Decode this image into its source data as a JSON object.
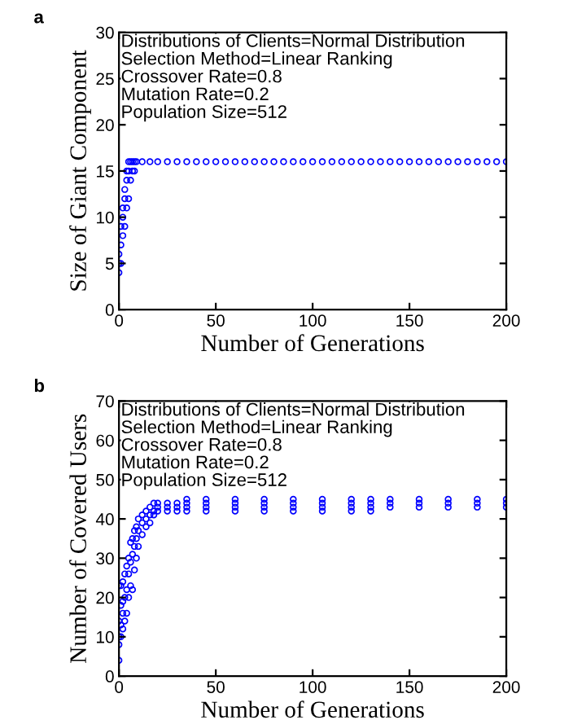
{
  "chart_data": [
    {
      "type": "scatter",
      "xlabel": "Number of Generations",
      "ylabel": "Size of Giant Component",
      "xlim": [
        0,
        200
      ],
      "ylim": [
        0,
        30
      ],
      "xticks": [
        0,
        50,
        100,
        150,
        200
      ],
      "yticks": [
        0,
        5,
        10,
        15,
        20,
        25,
        30
      ],
      "marker": "circle",
      "grid": false,
      "annotations": [
        "a",
        "Distributions of Clients=Normal Distribution",
        "Selection Method=Linear Ranking",
        "Crossover Rate=0.8",
        "Mutation Rate=0.2",
        "Population Size=512"
      ],
      "series": [
        {
          "color": "#0000ff",
          "x": [
            0,
            0,
            0,
            1,
            1,
            1,
            2,
            2,
            2,
            3,
            3,
            3,
            4,
            4,
            4,
            5,
            5,
            5,
            6,
            6,
            7,
            7,
            8,
            8,
            9,
            12,
            16,
            20,
            25,
            30,
            35,
            40,
            45,
            50,
            55,
            60,
            65,
            70,
            75,
            80,
            85,
            90,
            95,
            100,
            105,
            110,
            115,
            120,
            125,
            130,
            135,
            140,
            145,
            150,
            155,
            160,
            165,
            170,
            175,
            180,
            185,
            190,
            195,
            200
          ],
          "values": [
            4,
            5,
            6,
            5,
            7,
            9,
            8,
            10,
            11,
            9,
            12,
            13,
            11,
            14,
            15,
            12,
            15,
            16,
            14,
            16,
            15,
            16,
            15,
            16,
            16,
            16,
            16,
            16,
            16,
            16,
            16,
            16,
            16,
            16,
            16,
            16,
            16,
            16,
            16,
            16,
            16,
            16,
            16,
            16,
            16,
            16,
            16,
            16,
            16,
            16,
            16,
            16,
            16,
            16,
            16,
            16,
            16,
            16,
            16,
            16,
            16,
            16,
            16,
            16
          ]
        }
      ]
    },
    {
      "type": "scatter",
      "xlabel": "Number of Generations",
      "ylabel": "Number of Covered Users",
      "xlim": [
        0,
        200
      ],
      "ylim": [
        0,
        70
      ],
      "xticks": [
        0,
        50,
        100,
        150,
        200
      ],
      "yticks": [
        0,
        10,
        20,
        30,
        40,
        50,
        60,
        70
      ],
      "marker": "circle",
      "grid": false,
      "annotations": [
        "b",
        "Distributions of Clients=Normal Distribution",
        "Selection Method=Linear Ranking",
        "Crossover Rate=0.8",
        "Mutation Rate=0.2",
        "Population Size=512"
      ],
      "series": [
        {
          "color": "#0000ff",
          "x": [
            0,
            0,
            0,
            0,
            0,
            1,
            1,
            1,
            1,
            2,
            2,
            2,
            2,
            3,
            3,
            3,
            4,
            4,
            4,
            5,
            5,
            5,
            6,
            6,
            6,
            7,
            7,
            7,
            8,
            8,
            8,
            9,
            9,
            9,
            10,
            10,
            10,
            12,
            12,
            12,
            14,
            14,
            14,
            16,
            16,
            16,
            18,
            18,
            18,
            20,
            20,
            20,
            25,
            25,
            25,
            30,
            30,
            30,
            35,
            35,
            35,
            35,
            45,
            45,
            45,
            45,
            60,
            60,
            60,
            60,
            75,
            75,
            75,
            75,
            90,
            90,
            90,
            90,
            105,
            105,
            105,
            105,
            120,
            120,
            120,
            120,
            130,
            130,
            130,
            130,
            140,
            140,
            140,
            155,
            155,
            155,
            170,
            170,
            170,
            185,
            185,
            185,
            200,
            200,
            200
          ],
          "values": [
            4,
            8,
            10,
            14,
            23,
            10,
            13,
            18,
            23,
            12,
            16,
            19,
            24,
            14,
            20,
            26,
            16,
            22,
            28,
            20,
            26,
            30,
            23,
            29,
            34,
            22,
            31,
            35,
            27,
            33,
            37,
            30,
            35,
            38,
            33,
            37,
            40,
            36,
            39,
            41,
            38,
            40,
            42,
            39,
            41,
            43,
            41,
            42,
            44,
            42,
            43,
            44,
            42,
            43,
            44,
            42,
            43,
            44,
            42,
            43,
            44,
            45,
            42,
            43,
            44,
            45,
            42,
            43,
            44,
            45,
            42,
            43,
            44,
            45,
            42,
            43,
            44,
            45,
            42,
            43,
            44,
            45,
            42,
            43,
            44,
            45,
            42,
            43,
            44,
            45,
            43,
            44,
            45,
            43,
            44,
            45,
            43,
            44,
            45,
            43,
            44,
            45,
            43,
            44,
            45
          ]
        }
      ]
    }
  ]
}
